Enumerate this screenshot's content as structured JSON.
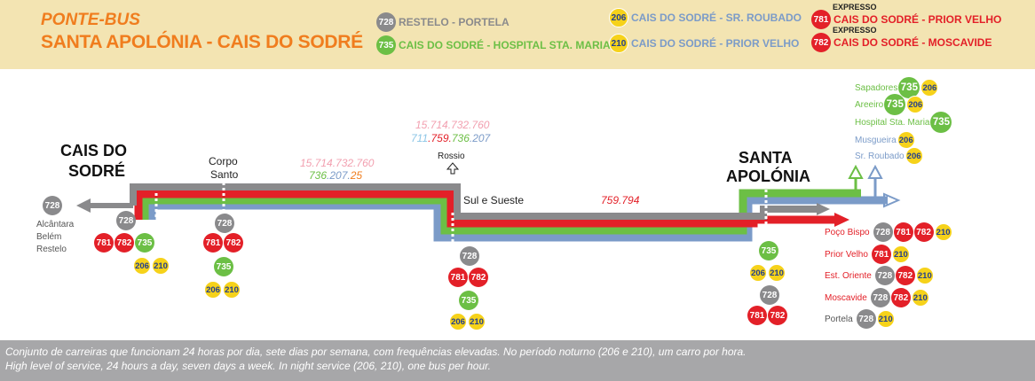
{
  "header": {
    "title1": "PONTE-BUS",
    "title2": "SANTA APOLÓNIA - CAIS DO SODRÉ",
    "legend": [
      {
        "route": "728",
        "label": "RESTELO - PORTELA",
        "color": "#8a8a8c"
      },
      {
        "route": "735",
        "label": "CAIS DO SODRÉ - HOSPITAL STA. MARIA",
        "color": "#6cbf45"
      },
      {
        "route": "206",
        "label": "CAIS DO SODRÉ - SR. ROUBADO",
        "color": "#7b9bc8"
      },
      {
        "route": "210",
        "label": "CAIS DO SODRÉ - PRIOR VELHO",
        "color": "#7b9bc8"
      },
      {
        "route": "781",
        "label": "CAIS DO SODRÉ - PRIOR VELHO",
        "color": "#e32028",
        "tag": "EXPRESSO"
      },
      {
        "route": "782",
        "label": "CAIS DO SODRÉ - MOSCAVIDE",
        "color": "#e32028",
        "tag": "EXPRESSO"
      }
    ]
  },
  "map": {
    "cais_label_1": "CAIS DO",
    "cais_label_2": "SODRÉ",
    "sta_label_1": "SANTA",
    "sta_label_2": "APOLÓNIA",
    "west": {
      "l1": "Alcântara",
      "l2": "Belém",
      "l3": "Restelo",
      "route": "728"
    },
    "corpo_santo_1": "Corpo",
    "corpo_santo_2": "Santo",
    "rossio": "Rossio",
    "sul_sueste": "Sul e Sueste",
    "conn_cais": {
      "p1": "15.714.732.760",
      "p2a": "736",
      "p2b": ".207.",
      "p2c": "25"
    },
    "conn_rossio": {
      "p1": "15.714.732.760",
      "q1": "711",
      "q2": ".759.",
      "q3": "736",
      "q4": ".207"
    },
    "conn_sul": "759.794",
    "stops": {
      "cais_do_sodre": [
        "728",
        "781",
        "782",
        "735",
        "206",
        "210"
      ],
      "corpo_santo": [
        "728",
        "781",
        "782",
        "735",
        "206",
        "210"
      ],
      "sul_e_sueste": [
        "728",
        "781",
        "782",
        "735",
        "206",
        "210"
      ],
      "santa_apolonia": [
        "735",
        "206",
        "210",
        "728",
        "781",
        "782"
      ]
    },
    "north": [
      {
        "name": "Sapadores",
        "routes": [
          "735",
          "206"
        ]
      },
      {
        "name": "Areeiro",
        "routes": [
          "735",
          "206"
        ]
      },
      {
        "name": "Hospital Sta. Maria",
        "routes": [
          "735"
        ]
      },
      {
        "name": "Musgueira",
        "routes": [
          "206"
        ]
      },
      {
        "name": "Sr. Roubado",
        "routes": [
          "206"
        ]
      }
    ],
    "east": [
      {
        "name": "Poço Bispo",
        "routes": [
          "728",
          "781",
          "782",
          "210"
        ]
      },
      {
        "name": "Prior Velho",
        "routes": [
          "781",
          "210"
        ]
      },
      {
        "name": "Est. Oriente",
        "routes": [
          "728",
          "782",
          "210"
        ]
      },
      {
        "name": "Moscavide",
        "routes": [
          "728",
          "782",
          "210"
        ]
      },
      {
        "name": "Portela",
        "routes": [
          "728",
          "210"
        ]
      }
    ]
  },
  "footer": {
    "pt_a": "Conjunto de carreiras que funcionam 24 horas por dia, sete dias por semana, com frequências elevadas. No período noturno (",
    "pt_r1": "206",
    "pt_b": " e ",
    "pt_r2": "210",
    "pt_c": "), um carro por hora.",
    "en_a": "High level of service, 24 hours a day, seven days a week. In night service (",
    "en_r1": "206",
    "en_b": ", ",
    "en_r2": "210",
    "en_c": "), one bus per hour."
  },
  "colors": {
    "gray": "#8a8a8c",
    "green": "#6cbf45",
    "red": "#e32028",
    "yellow": "#f6d21a",
    "blue": "#7b9bc8",
    "orange": "#f07d1e",
    "header_bg": "#f3e4b2"
  }
}
